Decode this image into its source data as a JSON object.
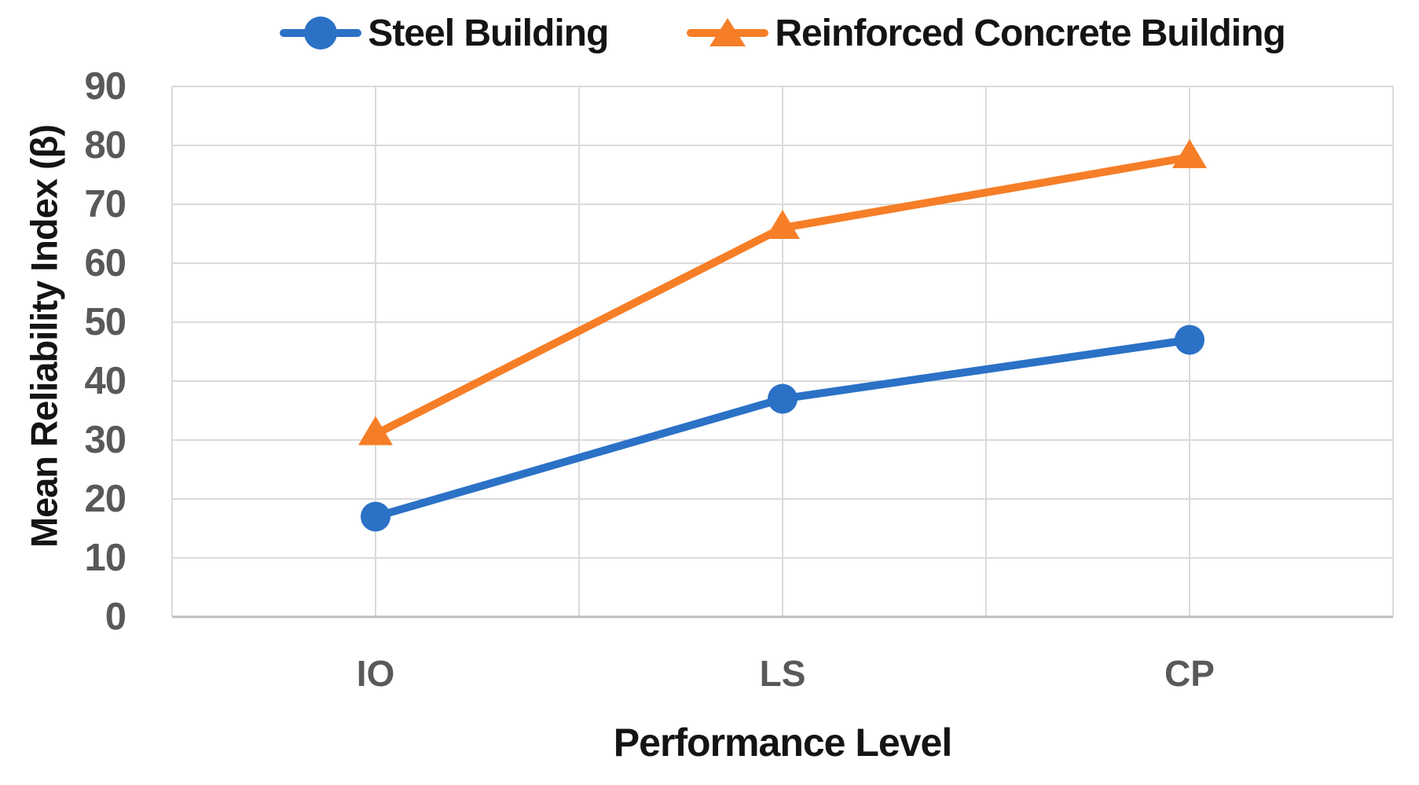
{
  "chart_data": {
    "type": "line",
    "categories": [
      "IO",
      "LS",
      "CP"
    ],
    "series": [
      {
        "name": "Steel Building",
        "values": [
          17,
          37,
          47
        ],
        "color": "#2B71C6",
        "marker": "circle"
      },
      {
        "name": "Reinforced Concrete Building",
        "values": [
          31,
          66,
          78
        ],
        "color": "#F67E27",
        "marker": "triangle-up"
      }
    ],
    "title": "",
    "xlabel": "Performance Level",
    "ylabel": "Mean Reliability Index (β)",
    "ylim": [
      0,
      90
    ],
    "yticks": [
      90,
      80,
      70,
      60,
      50,
      40,
      30,
      20,
      10,
      0
    ],
    "grid": {
      "horizontal": true,
      "vertical": true,
      "vertical_divisions": 6
    },
    "legend_position": "top",
    "colors": {
      "gridline": "#DADADA",
      "axis_line": "#BFBFBF",
      "tick_text": "#595959",
      "title_text": "#141414",
      "background": "#FFFFFF"
    }
  }
}
